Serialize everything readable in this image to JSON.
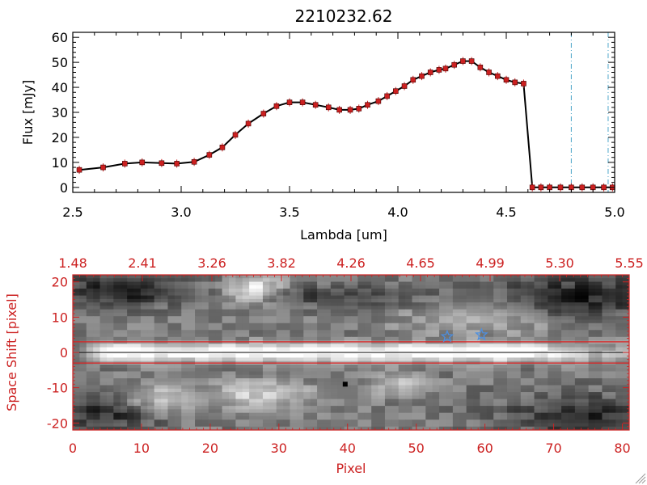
{
  "chart_data": [
    {
      "type": "line",
      "title": "2210232.62",
      "xlabel": "Lambda [um]",
      "ylabel": "Flux [mJy]",
      "xlim": [
        2.5,
        5.0
      ],
      "ylim": [
        -2,
        62
      ],
      "xticks": [
        "2.5",
        "3.0",
        "3.5",
        "4.0",
        "4.5",
        "5.0"
      ],
      "xtick_values": [
        2.5,
        3.0,
        3.5,
        4.0,
        4.5,
        5.0
      ],
      "yticks": [
        "0",
        "10",
        "20",
        "30",
        "40",
        "50",
        "60"
      ],
      "ytick_values": [
        0,
        10,
        20,
        30,
        40,
        50,
        60
      ],
      "series": [
        {
          "name": "flux",
          "x": [
            2.53,
            2.64,
            2.74,
            2.82,
            2.91,
            2.98,
            3.06,
            3.13,
            3.19,
            3.25,
            3.31,
            3.38,
            3.44,
            3.5,
            3.56,
            3.62,
            3.68,
            3.73,
            3.78,
            3.82,
            3.86,
            3.91,
            3.95,
            3.99,
            4.03,
            4.07,
            4.11,
            4.15,
            4.19,
            4.22,
            4.26,
            4.3,
            4.34,
            4.38,
            4.42,
            4.46,
            4.5,
            4.54,
            4.58,
            4.62,
            4.66,
            4.7,
            4.75,
            4.8,
            4.85,
            4.9,
            4.95,
            4.99
          ],
          "y": [
            7,
            8,
            9.5,
            10,
            9.7,
            9.5,
            10.2,
            13,
            16,
            21,
            25.5,
            29.5,
            32.5,
            34,
            34,
            33,
            32,
            31,
            31,
            31.5,
            33,
            34.5,
            36.5,
            38.5,
            40.5,
            43,
            44.5,
            46,
            47,
            47.5,
            49,
            50.5,
            50.5,
            48,
            46,
            44.5,
            43,
            42,
            41.5,
            0,
            0,
            0,
            0,
            0,
            0,
            0,
            0,
            0
          ],
          "color": "#000000",
          "marker_color": "#cc2020"
        }
      ],
      "vlines": [
        4.8,
        4.97
      ],
      "vline_color": "#4da6c8",
      "hline": 0,
      "hline_color": "#ff3333"
    },
    {
      "type": "heatmap",
      "xlabel": "Pixel",
      "ylabel": "Space Shift [pixel]",
      "xlim": [
        0,
        81
      ],
      "ylim": [
        -22,
        22
      ],
      "xticks": [
        "0",
        "10",
        "20",
        "30",
        "40",
        "50",
        "60",
        "70",
        "80"
      ],
      "xtick_values": [
        0,
        10,
        20,
        30,
        40,
        50,
        60,
        70,
        80
      ],
      "yticks": [
        "-20",
        "-10",
        "0",
        "10",
        "20"
      ],
      "ytick_values": [
        -20,
        -10,
        0,
        10,
        20
      ],
      "top_axis_ticks": [
        "1.48",
        "2.41",
        "3.26",
        "3.82",
        "4.26",
        "4.65",
        "4.99",
        "5.30",
        "5.55"
      ],
      "hlines": [
        3,
        -3
      ],
      "hline_color": "#dd2222",
      "center_line": 0,
      "stars": [
        {
          "x": 54.5,
          "y": 4.5
        },
        {
          "x": 59.5,
          "y": 5
        }
      ],
      "star_color": "#4d8fe0",
      "axis_color": "#cc2222",
      "colormap": "grayscale"
    }
  ]
}
